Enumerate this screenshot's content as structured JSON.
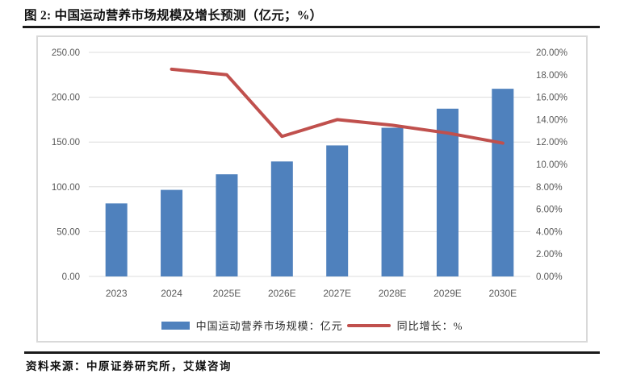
{
  "figure": {
    "title": "图 2: 中国运动营养市场规模及增长预测（亿元；%）",
    "source": "资料来源：中原证券研究所，艾媒咨询"
  },
  "colors": {
    "bar": "#4F81BD",
    "line": "#C0504D",
    "grid": "#DCDCDC",
    "axis_text": "#595959",
    "panel_border": "#D9D9D9",
    "rule": "#1A1A1A"
  },
  "chart_data": {
    "type": "bar",
    "subtype": "combo-bar-line-dual-axis",
    "title": "中国运动营养市场规模及增长预测（亿元；%）",
    "categories": [
      "2023",
      "2024",
      "2025E",
      "2026E",
      "2027E",
      "2028E",
      "2029E",
      "2030E"
    ],
    "series": [
      {
        "name": "中国运动营养市场规模：亿元",
        "type": "bar",
        "axis": "left",
        "color": "#4F81BD",
        "values": [
          81.5,
          96.6,
          114.0,
          128.3,
          146.2,
          165.9,
          187.2,
          209.4
        ]
      },
      {
        "name": "同比增长：%",
        "type": "line",
        "axis": "right",
        "color": "#C0504D",
        "values": [
          null,
          18.5,
          18.0,
          12.5,
          14.0,
          13.5,
          12.8,
          11.9
        ]
      }
    ],
    "left_axis": {
      "min": 0,
      "max": 250,
      "step": 50,
      "ticks": [
        "0.00",
        "50.00",
        "100.00",
        "150.00",
        "200.00",
        "250.00"
      ]
    },
    "right_axis": {
      "min": 0,
      "max": 20,
      "step": 2,
      "ticks": [
        "0.00%",
        "2.00%",
        "4.00%",
        "6.00%",
        "8.00%",
        "10.00%",
        "12.00%",
        "14.00%",
        "16.00%",
        "18.00%",
        "20.00%"
      ]
    },
    "grid": true,
    "gridlines_at_left_step": true,
    "legend_position": "bottom"
  }
}
